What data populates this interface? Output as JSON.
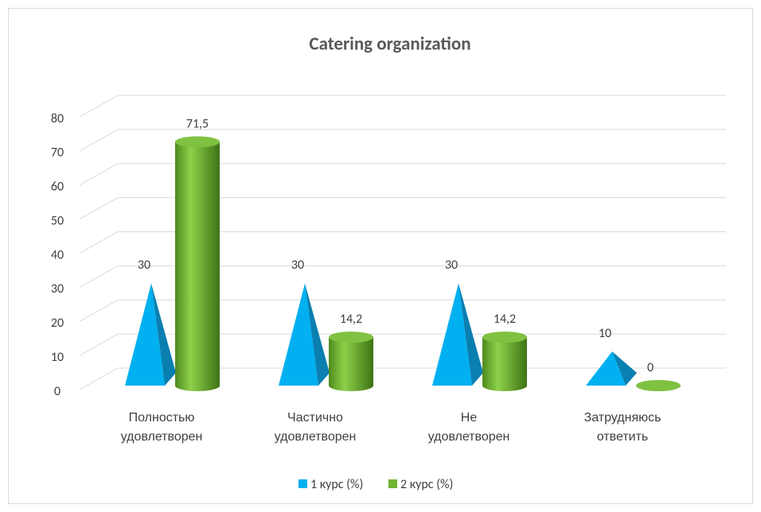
{
  "chart_data": {
    "type": "bar",
    "title": "Catering organization",
    "categories": [
      "Полностью удовлетворен",
      "Частично удовлетворен",
      "Не удовлетворен",
      "Затрудняюсь ответить"
    ],
    "series": [
      {
        "name": "1 курс (%)",
        "color": "#00b0f0",
        "values": [
          30,
          30,
          30,
          10
        ]
      },
      {
        "name": "2 курс (%)",
        "color": "#70b435",
        "values": [
          71.5,
          14.2,
          14.2,
          0
        ],
        "value_labels": [
          "71,5",
          "14,2",
          "14,2",
          "0"
        ]
      }
    ],
    "ylim": [
      0,
      80
    ],
    "yticks": [
      0,
      10,
      20,
      30,
      40,
      50,
      60,
      70,
      80
    ],
    "grid": true,
    "legend": "bottom"
  }
}
